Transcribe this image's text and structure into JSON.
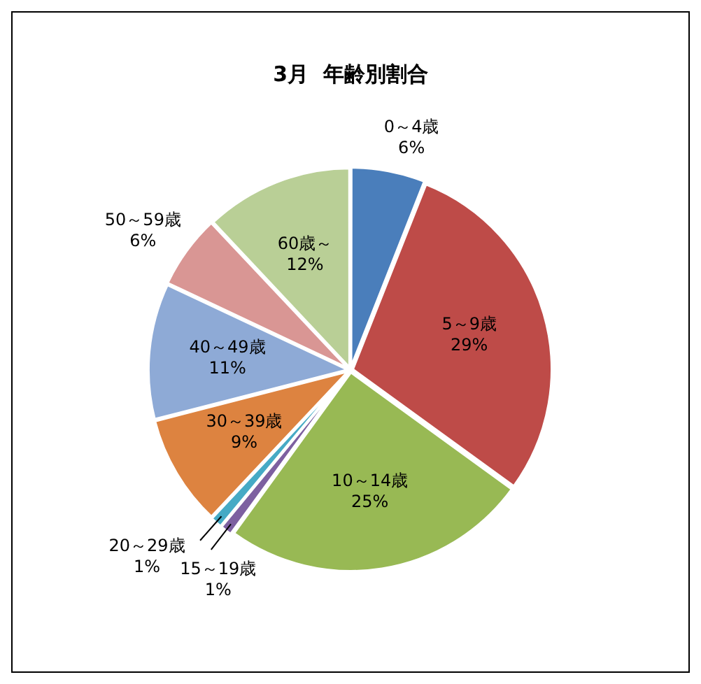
{
  "chart_data": {
    "type": "pie",
    "title": "3月  年齢別割合",
    "categories": [
      "0～4歳",
      "5～9歳",
      "10～14歳",
      "15～19歳",
      "20～29歳",
      "30～39歳",
      "40～49歳",
      "50～59歳",
      "60歳～"
    ],
    "values": [
      6,
      29,
      25,
      1,
      1,
      9,
      11,
      6,
      12
    ],
    "value_labels": [
      "6%",
      "29%",
      "25%",
      "1%",
      "1%",
      "9%",
      "11%",
      "6%",
      "12%"
    ],
    "colors": [
      "#4a7ebb",
      "#be4b48",
      "#98b954",
      "#7d60a0",
      "#46aac5",
      "#dd8340",
      "#8eaad6",
      "#d99694",
      "#b9cf96"
    ],
    "legend": false
  }
}
